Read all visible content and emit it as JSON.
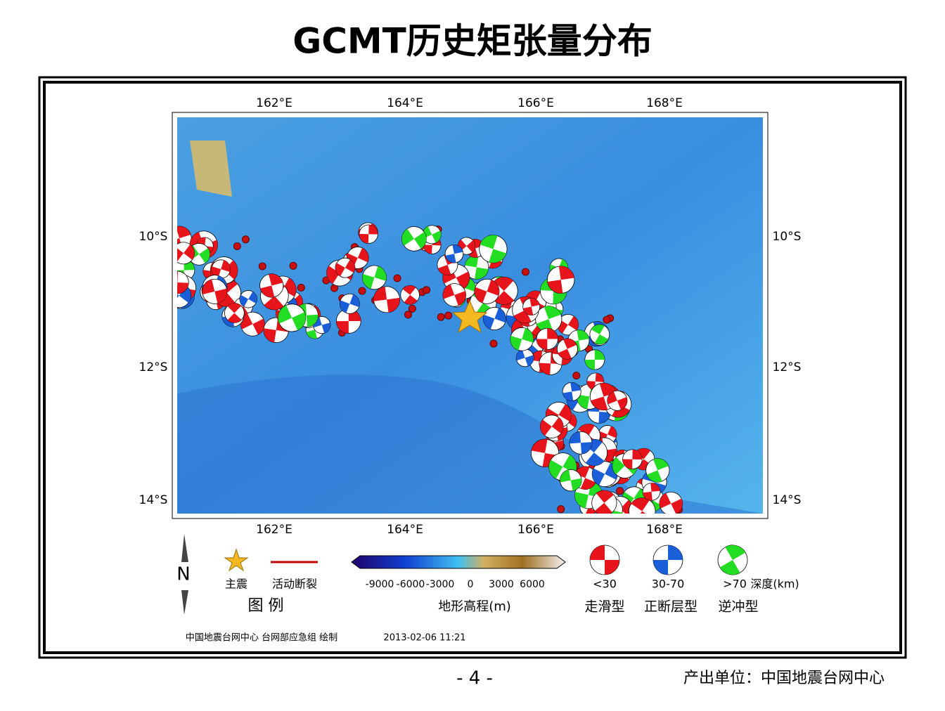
{
  "header": {
    "title": "GCMT历史矩张量分布"
  },
  "map": {
    "lon_labels": [
      "162°E",
      "164°E",
      "166°E",
      "168°E"
    ],
    "lat_labels": [
      "10°S",
      "12°S",
      "14°S"
    ]
  },
  "legend": {
    "north": "N",
    "mainshock": "主震",
    "fault": "活动断裂",
    "legend_title": "图  例",
    "colorbar_labels": [
      "-9000",
      "-6000",
      "-3000",
      "0",
      "3000",
      "6000"
    ],
    "colorbar_title": "地形高程(m)",
    "depths": [
      "<30",
      "30-70",
      ">70"
    ],
    "depth_unit": "深度(km)",
    "mechanisms": [
      "走滑型",
      "正断层型",
      "逆冲型"
    ]
  },
  "credit": {
    "maker": "中国地震台网中心 台网部应急组 绘制",
    "date": "2013-02-06 11:21"
  },
  "footer": {
    "page": "- 4 -",
    "source": "产出单位：中国地震台网中心"
  }
}
